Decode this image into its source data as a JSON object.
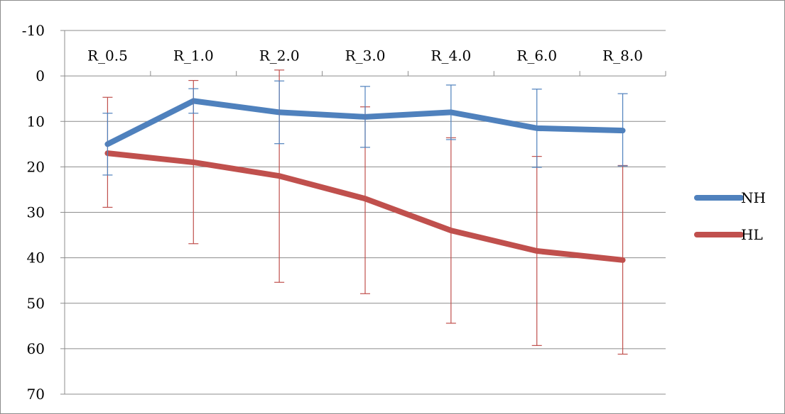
{
  "chart_data": {
    "type": "line",
    "categories": [
      "R_0.5",
      "R_1.0",
      "R_2.0",
      "R_3.0",
      "R_4.0",
      "R_6.0",
      "R_8.0"
    ],
    "y_axis": {
      "min": -10,
      "max": 70,
      "step": 10,
      "reversed": true,
      "ticks": [
        "-10",
        "0",
        "10",
        "20",
        "30",
        "40",
        "50",
        "60",
        "70"
      ]
    },
    "grid": "horizontal",
    "legend_position": "right",
    "title": "",
    "xlabel": "",
    "ylabel": "",
    "series": [
      {
        "name": "NH",
        "color": "#4f81bd",
        "values": [
          15,
          5.5,
          8,
          9,
          8,
          11.5,
          12
        ],
        "error": [
          [
            8.2,
            21.8
          ],
          [
            2.8,
            8.2
          ],
          [
            1.1,
            14.9
          ],
          [
            2.3,
            15.7
          ],
          [
            2.0,
            14.0
          ],
          [
            2.9,
            20.1
          ],
          [
            3.9,
            19.8
          ]
        ]
      },
      {
        "name": "HL",
        "color": "#c0504d",
        "values": [
          17,
          19,
          22,
          27,
          34,
          38.5,
          40.5
        ],
        "error": [
          [
            4.7,
            28.9
          ],
          [
            1.0,
            36.9
          ],
          [
            -1.3,
            45.4
          ],
          [
            6.8,
            47.9
          ],
          [
            13.6,
            54.4
          ],
          [
            17.7,
            59.3
          ],
          [
            19.7,
            61.2
          ]
        ]
      }
    ]
  }
}
